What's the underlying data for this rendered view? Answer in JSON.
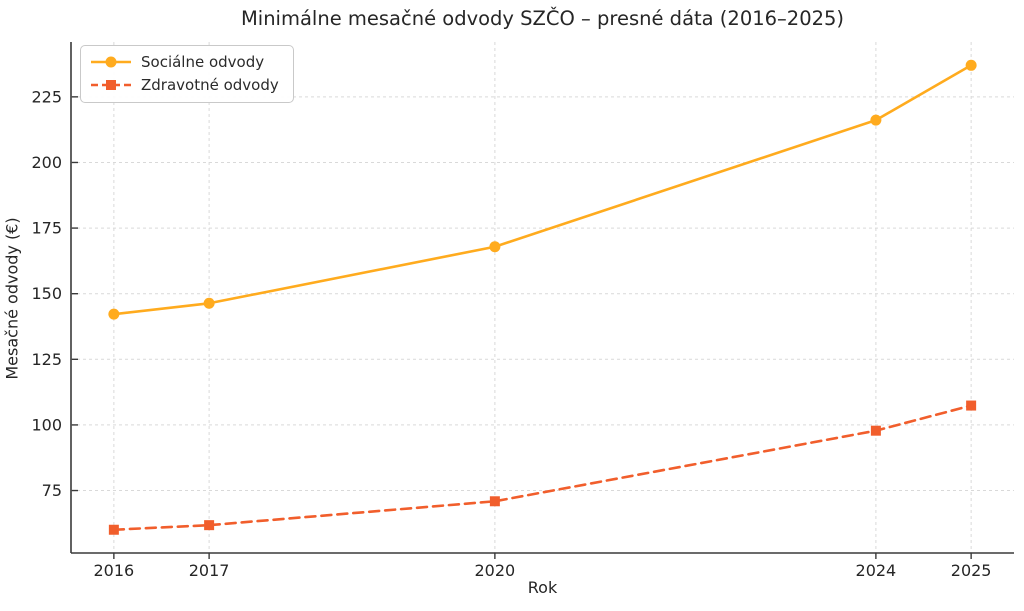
{
  "figure": {
    "background": "#ffffff"
  },
  "chart_data": {
    "type": "line",
    "title": "Minimálne mesačné odvody SZČO – presné dáta (2016–2025)",
    "xlabel": "Rok",
    "ylabel": "Mesačné odvody (€)",
    "x": [
      2016,
      2017,
      2020,
      2024,
      2025
    ],
    "series": [
      {
        "name": "Sociálne odvody",
        "values": [
          142.2,
          146.35,
          167.89,
          216.13,
          237.02
        ],
        "color": "#FFAB1E",
        "line_style": "solid",
        "marker": "circle"
      },
      {
        "name": "Zdravotné odvody",
        "values": [
          60.06,
          61.81,
          70.91,
          97.8,
          107.38
        ],
        "color": "#F15E2C",
        "line_style": "dashed",
        "marker": "square"
      }
    ],
    "xticks": [
      2016,
      2017,
      2020,
      2024,
      2025
    ],
    "yticks": [
      75,
      100,
      125,
      150,
      175,
      200,
      225
    ],
    "xlim": [
      2015.55,
      2025.45
    ],
    "ylim": [
      51.2,
      245.9
    ],
    "grid": true,
    "grid_color": "#d9d9d9",
    "spine_color": "#3a3a3a",
    "tick_label_color": "#262626",
    "legend_position": "upper-left"
  }
}
